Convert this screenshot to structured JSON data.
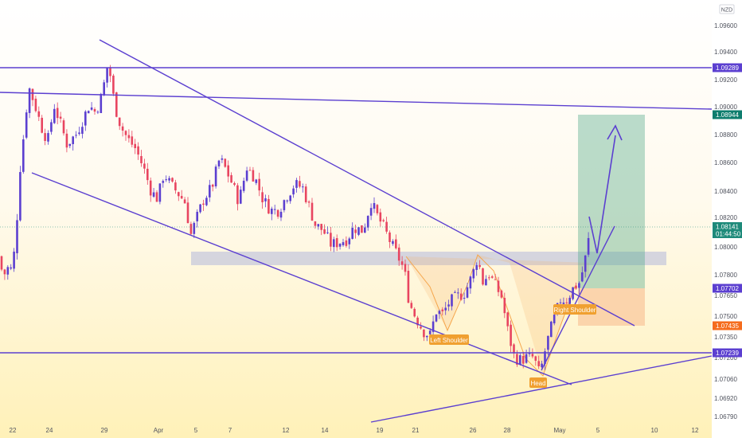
{
  "chart_data": {
    "type": "candlestick",
    "currency_label": "NZD",
    "ylim": [
      1.0674,
      1.0978
    ],
    "y_ticks": [
      "1.09600",
      "1.09400",
      "1.09200",
      "1.09000",
      "1.08800",
      "1.08600",
      "1.08400",
      "1.08200",
      "1.08000",
      "1.07800",
      "1.07650",
      "1.07500",
      "1.07350",
      "1.07200",
      "1.07060",
      "1.06920",
      "1.06790"
    ],
    "x_ticks": [
      "22",
      "24",
      "29",
      "Apr",
      "5",
      "7",
      "12",
      "14",
      "19",
      "21",
      "26",
      "28",
      "May",
      "5",
      "10",
      "12"
    ],
    "price_badges": [
      {
        "label": "1.09289",
        "color": "#5b3fd0"
      },
      {
        "label": "1.08944",
        "color": "#0e7d6e"
      },
      {
        "label": "1.08141",
        "sublabel": "01:44:50",
        "color": "#1e8a7a"
      },
      {
        "label": "1.07702",
        "color": "#5b3fd0"
      },
      {
        "label": "1.07435",
        "color": "#f56c1d"
      },
      {
        "label": "1.07239",
        "color": "#5b3fd0"
      }
    ],
    "price_levels": [
      1.09289,
      1.07239
    ],
    "pattern_labels": [
      "Left Shoulder",
      "Head",
      "Right Shoulder"
    ],
    "trade_zone": {
      "entry": 1.07702,
      "target": 1.08944,
      "stop": 1.07435
    },
    "colors": {
      "up": "#5b3fd0",
      "down": "#e84560",
      "trendline": "#5b3fd0",
      "zone": "#c7c9dc",
      "profit": "#5aae90",
      "loss": "#f9c89e",
      "pattern": "#f5a54a"
    }
  }
}
